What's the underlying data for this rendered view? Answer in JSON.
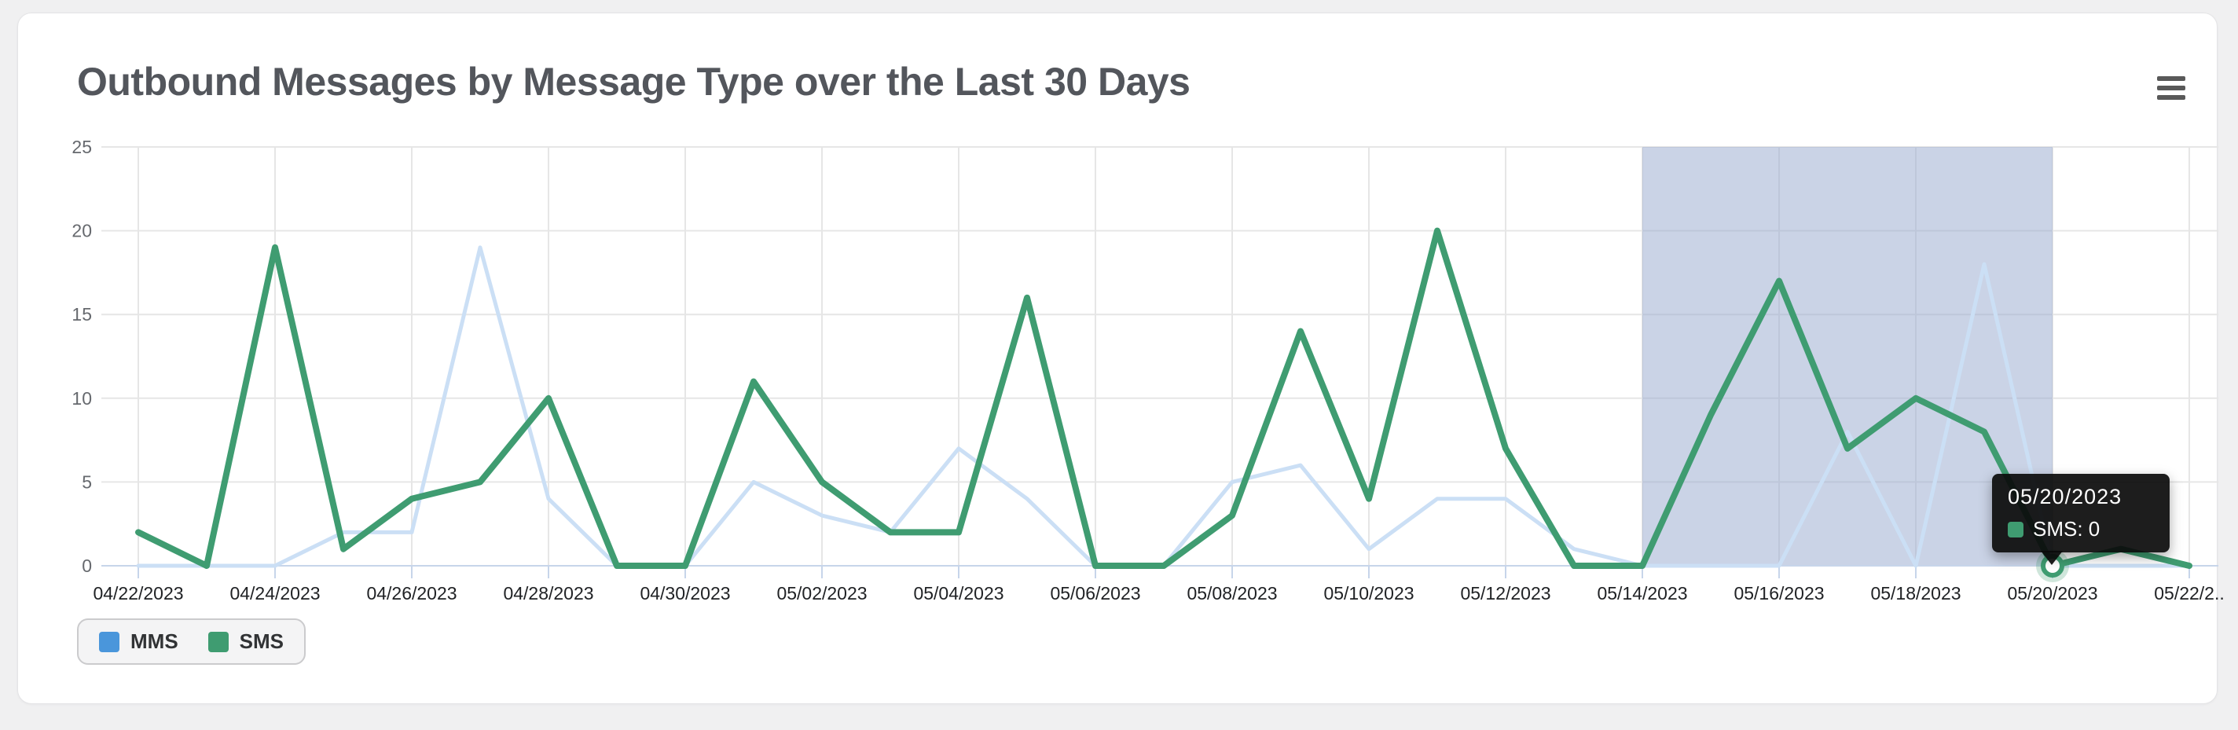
{
  "header": {
    "title": "Outbound Messages by Message Type over the Last 30 Days"
  },
  "menu": {
    "icon": "hamburger-icon"
  },
  "colors": {
    "sms_green": "#3f9c71",
    "mms_line": "#cbdff5",
    "mms_legend_blue": "#4a96db",
    "grid": "#e6e6e6",
    "axis_blue": "#c7d5ea",
    "selection_band": "rgba(150,168,205,0.5)",
    "tooltip_bg": "rgba(10,10,10,0.92)"
  },
  "legend": {
    "items": [
      {
        "label": "MMS",
        "color": "#4a96db"
      },
      {
        "label": "SMS",
        "color": "#3f9c71"
      }
    ]
  },
  "tooltip": {
    "date": "05/20/2023",
    "series": "SMS",
    "value": 0,
    "text": "SMS: 0",
    "swatch_color": "#3f9c71"
  },
  "chart_data": {
    "type": "line",
    "title": "Outbound Messages by Message Type over the Last 30 Days",
    "xlabel": "",
    "ylabel": "",
    "ylim": [
      0,
      25
    ],
    "yticks": [
      0,
      5,
      10,
      15,
      20,
      25
    ],
    "grid": true,
    "legend_position": "bottom-left",
    "categories": [
      "04/22/2023",
      "04/23/2023",
      "04/24/2023",
      "04/25/2023",
      "04/26/2023",
      "04/27/2023",
      "04/28/2023",
      "04/29/2023",
      "04/30/2023",
      "05/01/2023",
      "05/02/2023",
      "05/03/2023",
      "05/04/2023",
      "05/05/2023",
      "05/06/2023",
      "05/07/2023",
      "05/08/2023",
      "05/09/2023",
      "05/10/2023",
      "05/11/2023",
      "05/12/2023",
      "05/13/2023",
      "05/14/2023",
      "05/15/2023",
      "05/16/2023",
      "05/17/2023",
      "05/18/2023",
      "05/19/2023",
      "05/20/2023",
      "05/21/2023",
      "05/22/2023"
    ],
    "xtick_every": 2,
    "xtick_labels": [
      "04/22/2023",
      "04/24/2023",
      "04/26/2023",
      "04/28/2023",
      "04/30/2023",
      "05/02/2023",
      "05/04/2023",
      "05/06/2023",
      "05/08/2023",
      "05/10/2023",
      "05/12/2023",
      "05/14/2023",
      "05/16/2023",
      "05/18/2023",
      "05/20/2023",
      "05/22/2.."
    ],
    "series": [
      {
        "name": "MMS",
        "color": "#cbdff5",
        "legend_color": "#4a96db",
        "values": [
          0,
          0,
          0,
          2,
          2,
          19,
          4,
          0,
          0,
          5,
          3,
          2,
          7,
          4,
          0,
          0,
          5,
          6,
          1,
          4,
          4,
          1,
          0,
          0,
          0,
          8,
          0,
          18,
          0,
          0,
          0
        ]
      },
      {
        "name": "SMS",
        "color": "#3f9c71",
        "legend_color": "#3f9c71",
        "values": [
          2,
          0,
          19,
          1,
          4,
          5,
          10,
          0,
          0,
          11,
          5,
          2,
          2,
          16,
          0,
          0,
          3,
          14,
          4,
          20,
          7,
          0,
          0,
          9,
          17,
          7,
          10,
          8,
          0,
          1,
          0
        ]
      }
    ],
    "selection_band": {
      "start": "05/14/2023",
      "end": "05/20/2023",
      "start_index": 22,
      "end_index": 28
    },
    "hover_point": {
      "category": "05/20/2023",
      "series": "SMS",
      "value": 0,
      "index": 28
    }
  }
}
